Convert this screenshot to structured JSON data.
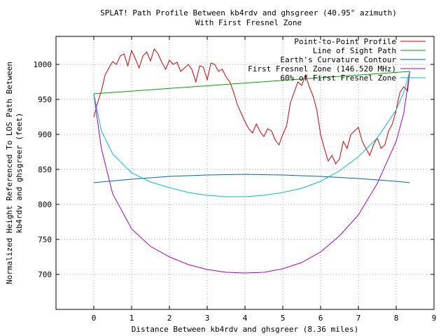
{
  "chart_data": {
    "type": "line",
    "title": "SPLAT! Path Profile Between kb4rdv and ghsgreer (40.95° azimuth)",
    "subtitle": "With First Fresnel Zone",
    "xlabel": "Distance Between kb4rdv and ghsgreer (8.36 miles)",
    "ylabel_line1": "Normalized Height Referenced To LOS Path Between",
    "ylabel_line2": "kb4rdv and ghsgreer (feet)",
    "xlim": [
      -1,
      9
    ],
    "ylim": [
      650,
      1040
    ],
    "x_ticks": [
      0,
      1,
      2,
      3,
      4,
      5,
      6,
      7,
      8,
      9
    ],
    "y_ticks": [
      700,
      750,
      800,
      850,
      900,
      950,
      1000
    ],
    "grid": true,
    "legend_position": "top-right",
    "series": [
      {
        "name": "Point-to-Point Profile",
        "color": "#cc0000",
        "x": [
          0,
          0.1,
          0.2,
          0.3,
          0.4,
          0.5,
          0.6,
          0.7,
          0.8,
          0.9,
          1.0,
          1.1,
          1.2,
          1.3,
          1.4,
          1.5,
          1.6,
          1.7,
          1.8,
          1.9,
          2.0,
          2.1,
          2.2,
          2.3,
          2.4,
          2.5,
          2.6,
          2.7,
          2.8,
          2.9,
          3.0,
          3.1,
          3.2,
          3.3,
          3.4,
          3.5,
          3.6,
          3.7,
          3.8,
          3.9,
          4.0,
          4.1,
          4.2,
          4.3,
          4.4,
          4.5,
          4.6,
          4.7,
          4.8,
          4.9,
          5.0,
          5.1,
          5.2,
          5.3,
          5.4,
          5.5,
          5.6,
          5.7,
          5.8,
          5.9,
          6.0,
          6.1,
          6.2,
          6.3,
          6.4,
          6.5,
          6.6,
          6.7,
          6.8,
          6.9,
          7.0,
          7.1,
          7.2,
          7.3,
          7.4,
          7.5,
          7.6,
          7.7,
          7.8,
          7.9,
          8.0,
          8.1,
          8.2,
          8.3,
          8.36
        ],
        "y": [
          925,
          945,
          962,
          985,
          995,
          1004,
          1000,
          1012,
          1015,
          998,
          1020,
          1008,
          995,
          1012,
          1018,
          1005,
          1022,
          1015,
          1003,
          993,
          1006,
          1000,
          1003,
          990,
          995,
          1000,
          992,
          975,
          998,
          996,
          978,
          1002,
          1000,
          990,
          993,
          982,
          975,
          960,
          942,
          930,
          918,
          908,
          902,
          915,
          904,
          897,
          908,
          905,
          892,
          885,
          900,
          912,
          945,
          960,
          975,
          970,
          985,
          968,
          955,
          935,
          900,
          880,
          862,
          870,
          858,
          865,
          890,
          880,
          900,
          905,
          910,
          890,
          880,
          870,
          885,
          895,
          880,
          885,
          905,
          915,
          935,
          960,
          968,
          962,
          990
        ]
      },
      {
        "name": "Line of Sight Path",
        "color": "#00a000",
        "x": [
          0,
          8.36
        ],
        "y": [
          958,
          990
        ]
      },
      {
        "name": "Earth's Curvature Contour",
        "color": "#0060c0",
        "x": [
          0,
          1,
          2,
          3,
          4,
          5,
          6,
          7,
          8,
          8.36
        ],
        "y": [
          831,
          836,
          840,
          842,
          843,
          842,
          840,
          837,
          833,
          831
        ]
      },
      {
        "name": "First Fresnel Zone (146.520 MHz)",
        "color": "#a000c0",
        "x": [
          0,
          0.2,
          0.5,
          1,
          1.5,
          2,
          2.5,
          3,
          3.5,
          4,
          4.5,
          5,
          5.5,
          6,
          6.5,
          7,
          7.5,
          8,
          8.2,
          8.36
        ],
        "y": [
          958,
          880,
          815,
          765,
          740,
          725,
          714,
          707,
          703,
          702,
          703,
          708,
          717,
          732,
          755,
          785,
          830,
          890,
          930,
          990
        ]
      },
      {
        "name": "60% of First Fresnel Zone",
        "color": "#00c0c0",
        "x": [
          0,
          0.2,
          0.5,
          1,
          1.5,
          2,
          2.5,
          3,
          3.5,
          4,
          4.5,
          5,
          5.5,
          6,
          6.5,
          7,
          7.5,
          8,
          8.2,
          8.36
        ],
        "y": [
          958,
          905,
          872,
          845,
          832,
          824,
          817,
          813,
          811,
          811,
          813,
          817,
          823,
          833,
          848,
          868,
          895,
          935,
          960,
          990
        ]
      }
    ]
  }
}
